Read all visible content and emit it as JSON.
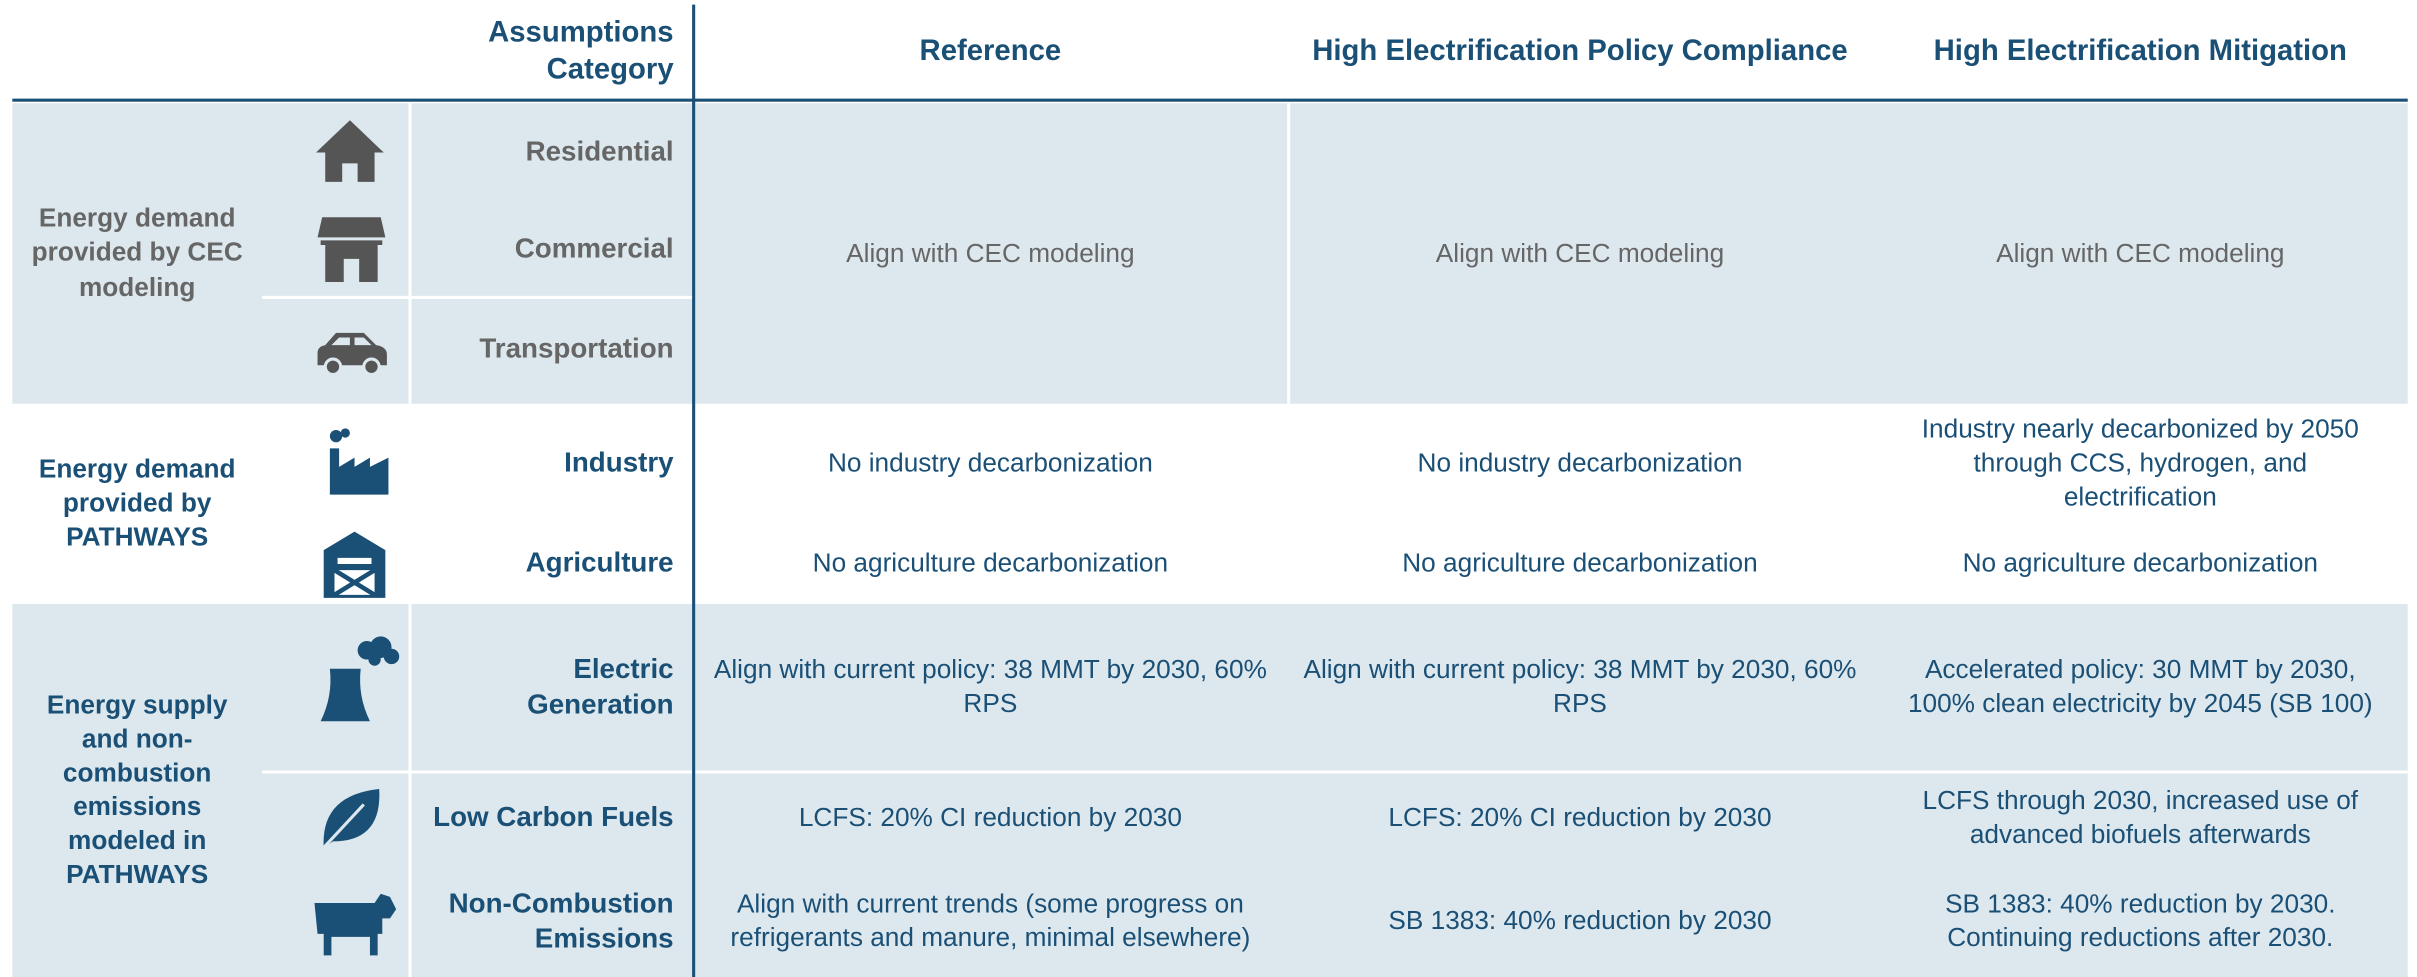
{
  "header": [
    "Assumptions Category",
    "Reference",
    "High Electrification Policy Compliance",
    "High Electrification Mitigation"
  ],
  "groups": [
    {
      "label": "Energy demand provided by CEC modeling",
      "rows": [
        {
          "category": "Residential"
        },
        {
          "category": "Commercial"
        },
        {
          "category": "Transportation"
        }
      ],
      "cells": [
        "Align with CEC modeling",
        "Align with CEC modeling",
        "Align with CEC modeling"
      ]
    },
    {
      "label": "Energy demand provided by PATHWAYS",
      "rows": [
        {
          "category": "Industry",
          "cells": [
            "No industry decarbonization",
            "No industry decarbonization",
            "Industry nearly decarbonized by 2050 through CCS, hydrogen, and electrification"
          ]
        },
        {
          "category": "Agriculture",
          "cells": [
            "No agriculture decarbonization",
            "No agriculture decarbonization",
            "No agriculture decarbonization"
          ]
        }
      ]
    },
    {
      "label": "Energy supply and non-combustion emissions modeled in PATHWAYS",
      "rows": [
        {
          "category": "Electric Generation",
          "cells": [
            "Align with current policy: 38 MMT by 2030, 60% RPS",
            "Align with current policy: 38 MMT by 2030, 60% RPS",
            "Accelerated policy: 30 MMT by 2030, 100% clean electricity by 2045 (SB 100)"
          ]
        },
        {
          "category": "Low Carbon Fuels",
          "cells": [
            "LCFS: 20% CI reduction by 2030",
            "LCFS: 20% CI reduction by 2030",
            "LCFS through 2030, increased use of advanced biofuels afterwards"
          ]
        },
        {
          "category": "Non-Combustion Emissions",
          "cells": [
            "Align with current trends (some progress on refrigerants and manure, minimal elsewhere)",
            "SB 1383: 40% reduction by 2030",
            "SB 1383: 40% reduction by 2030. Continuing reductions after 2030."
          ]
        }
      ]
    }
  ]
}
